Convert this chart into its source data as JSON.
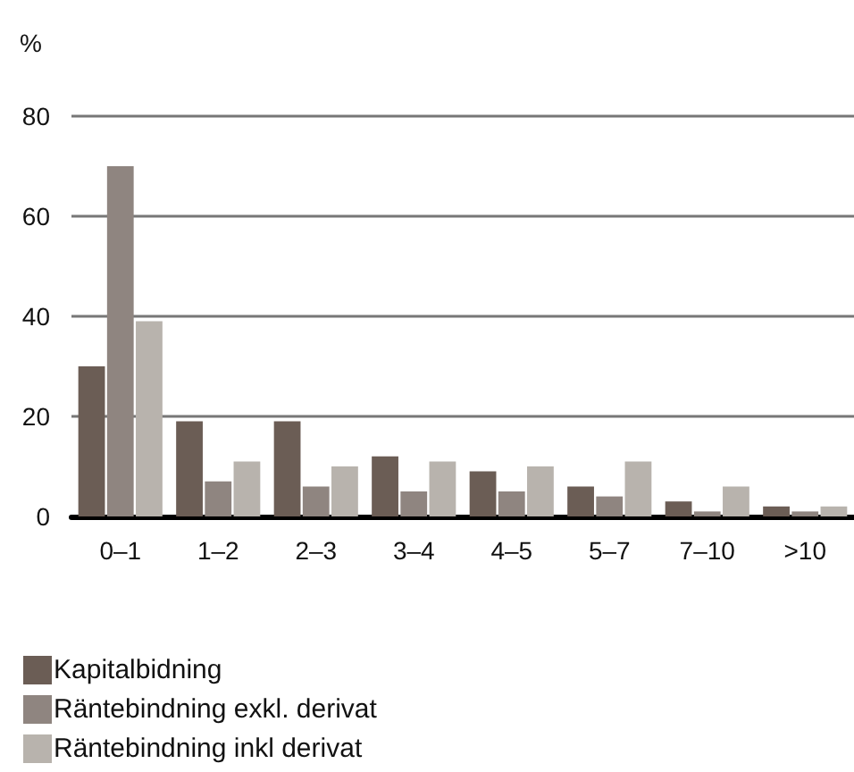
{
  "chart_data": {
    "type": "bar",
    "ylabel": "%",
    "categories": [
      "0–1",
      "1–2",
      "2–3",
      "3–4",
      "4–5",
      "5–7",
      "7–10",
      ">10"
    ],
    "series": [
      {
        "name": "Kapitalbidning",
        "color": "#6b5d55",
        "values": [
          30,
          19,
          19,
          12,
          9,
          6,
          3,
          2
        ]
      },
      {
        "name": "Räntebindning exkl. derivat",
        "color": "#8f8580",
        "values": [
          70,
          7,
          6,
          5,
          5,
          4,
          1,
          1
        ]
      },
      {
        "name": "Räntebindning inkl derivat",
        "color": "#b8b3ad",
        "values": [
          39,
          11,
          10,
          11,
          10,
          11,
          6,
          2
        ]
      }
    ],
    "ylim": [
      0,
      80
    ],
    "yticks": [
      0,
      20,
      40,
      60,
      80
    ],
    "grid": "y",
    "legend": "bottom left"
  }
}
